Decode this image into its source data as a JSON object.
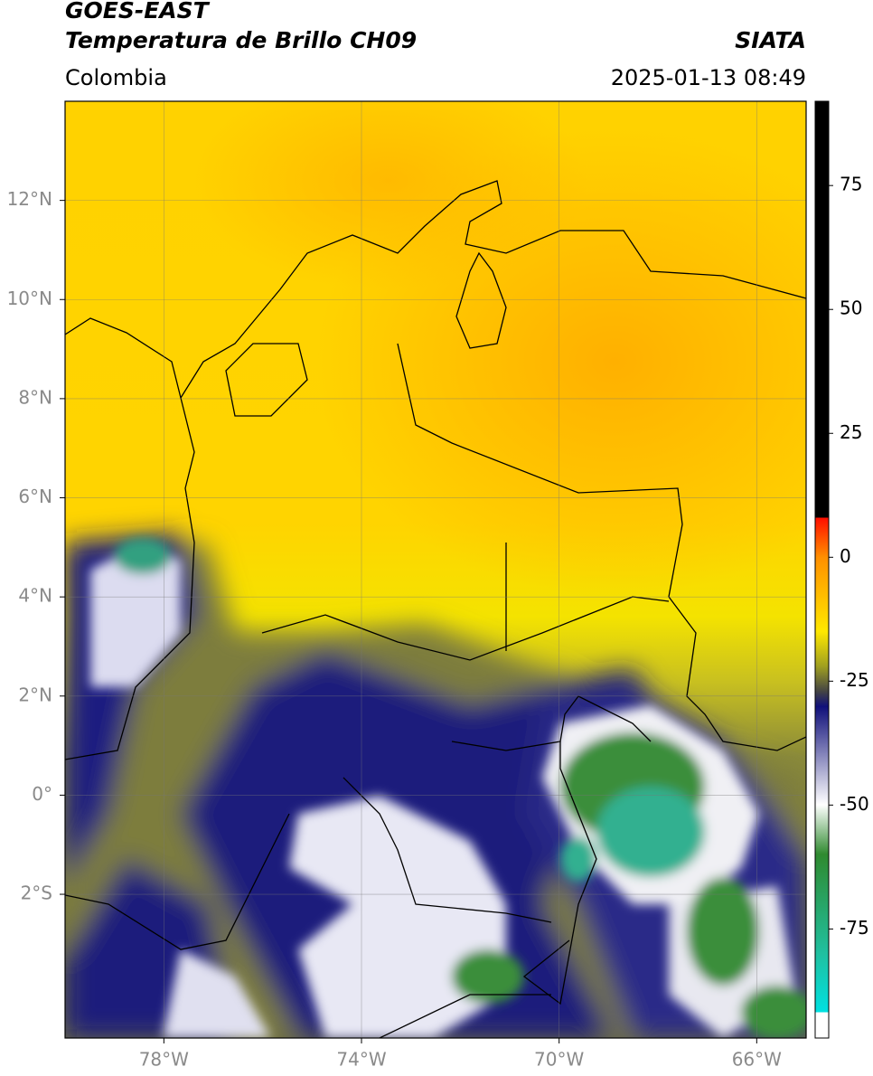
{
  "header": {
    "satellite": "GOES-EAST",
    "product": "Temperatura de Brillo CH09",
    "region": "Colombia",
    "source": "SIATA",
    "datetime": "2025-01-13 08:49"
  },
  "map": {
    "lonlim": [
      -80,
      -65
    ],
    "latlim": [
      -4.9,
      14
    ],
    "lon_ticks": [
      {
        "value": -78,
        "label": "78°W"
      },
      {
        "value": -74,
        "label": "74°W"
      },
      {
        "value": -70,
        "label": "70°W"
      },
      {
        "value": -66,
        "label": "66°W"
      }
    ],
    "lat_ticks": [
      {
        "value": 12,
        "label": "12°N"
      },
      {
        "value": 10,
        "label": "10°N"
      },
      {
        "value": 8,
        "label": "8°N"
      },
      {
        "value": 6,
        "label": "6°N"
      },
      {
        "value": 4,
        "label": "4°N"
      },
      {
        "value": 2,
        "label": "2°N"
      },
      {
        "value": 0,
        "label": "0°"
      },
      {
        "value": -2,
        "label": "2°S"
      }
    ]
  },
  "colorbar": {
    "range": [
      -97,
      92
    ],
    "ticks": [
      75,
      50,
      25,
      0,
      -25,
      -50,
      -75
    ]
  }
}
